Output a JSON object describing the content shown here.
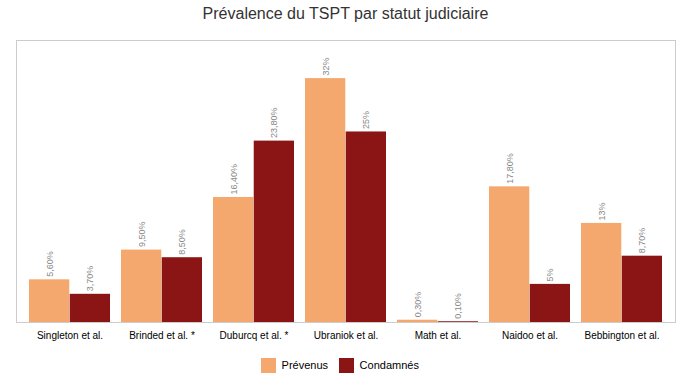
{
  "chart_data": {
    "type": "bar",
    "title": "Prévalence du TSPT par statut judiciaire",
    "categories": [
      "Singleton et al.",
      "Brinded et al. *",
      "Duburcq et al. *",
      "Ubraniok et al.",
      "Math et al.",
      "Naidoo et al.",
      "Bebbington et al."
    ],
    "series": [
      {
        "name": "Prévenus",
        "color": "#F5A86E",
        "values": [
          5.6,
          9.5,
          16.4,
          32.0,
          0.3,
          17.8,
          13.0
        ],
        "value_labels": [
          "5,60%",
          "9,50%",
          "16,40%",
          "32%",
          "0,30%",
          "17,80%",
          "13%"
        ]
      },
      {
        "name": "Condamnés",
        "color": "#8B1515",
        "values": [
          3.7,
          8.5,
          23.8,
          25.0,
          0.1,
          5.0,
          8.7
        ],
        "value_labels": [
          "3,70%",
          "8,50%",
          "23,80%",
          "25%",
          "0,10%",
          "5%",
          "8,70%"
        ]
      }
    ],
    "ylim": [
      0,
      37
    ],
    "yticks": [],
    "grid": false,
    "legend": "bottom",
    "data_labels": true,
    "tick_labels": "x"
  }
}
